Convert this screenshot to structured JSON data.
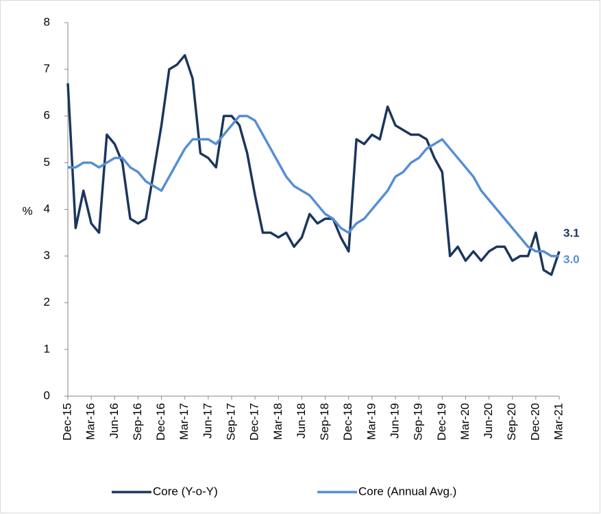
{
  "chart_data": {
    "type": "line",
    "y_label": "%",
    "categories": [
      "Dec-15",
      null,
      null,
      "Mar-16",
      null,
      null,
      "Jun-16",
      null,
      null,
      "Sep-16",
      null,
      null,
      "Dec-16",
      null,
      null,
      "Mar-17",
      null,
      null,
      "Jun-17",
      null,
      null,
      "Sep-17",
      null,
      null,
      "Dec-17",
      null,
      null,
      "Mar-18",
      null,
      null,
      "Jun-18",
      null,
      null,
      "Sep-18",
      null,
      null,
      "Dec-18",
      null,
      null,
      "Mar-19",
      null,
      null,
      "Jun-19",
      null,
      null,
      "Sep-19",
      null,
      null,
      "Dec-19",
      null,
      null,
      "Mar-20",
      null,
      null,
      "Jun-20",
      null,
      null,
      "Sep-20",
      null,
      null,
      "Dec-20",
      null,
      null,
      "Mar-21"
    ],
    "series": [
      {
        "name": "Core (Y-o-Y)",
        "color": "#1b365d",
        "values": [
          6.7,
          3.6,
          4.4,
          3.7,
          3.5,
          5.6,
          5.4,
          5.0,
          3.8,
          3.7,
          3.8,
          4.8,
          5.8,
          7.0,
          7.1,
          7.3,
          6.8,
          5.2,
          5.1,
          4.9,
          6.0,
          6.0,
          5.8,
          5.2,
          4.3,
          3.5,
          3.5,
          3.4,
          3.5,
          3.2,
          3.4,
          3.9,
          3.7,
          3.8,
          3.8,
          3.4,
          3.1,
          5.5,
          5.4,
          5.6,
          5.5,
          6.2,
          5.8,
          5.7,
          5.6,
          5.6,
          5.5,
          5.1,
          4.8,
          3.0,
          3.2,
          2.9,
          3.1,
          2.9,
          3.1,
          3.2,
          3.2,
          2.9,
          3.0,
          3.0,
          3.5,
          2.7,
          2.6,
          3.1
        ],
        "value_labels": [
          null,
          null,
          null,
          null,
          null,
          null,
          null,
          null,
          null,
          null,
          null,
          null,
          null,
          null,
          null,
          null,
          null,
          null,
          null,
          null,
          null,
          null,
          null,
          null,
          null,
          null,
          null,
          null,
          null,
          null,
          null,
          null,
          null,
          null,
          null,
          null,
          null,
          null,
          null,
          null,
          null,
          null,
          null,
          null,
          null,
          null,
          null,
          null,
          null,
          null,
          null,
          null,
          null,
          null,
          null,
          null,
          null,
          null,
          null,
          null,
          null,
          null,
          null,
          "3.1"
        ]
      },
      {
        "name": "Core (Annual Avg.)",
        "color": "#558ed5",
        "values": [
          4.9,
          4.9,
          5.0,
          5.0,
          4.9,
          5.0,
          5.1,
          5.1,
          4.9,
          4.8,
          4.6,
          4.5,
          4.4,
          4.7,
          5.0,
          5.3,
          5.5,
          5.5,
          5.5,
          5.4,
          5.6,
          5.8,
          6.0,
          6.0,
          5.9,
          5.6,
          5.3,
          5.0,
          4.7,
          4.5,
          4.4,
          4.3,
          4.1,
          3.9,
          3.8,
          3.6,
          3.5,
          3.7,
          3.8,
          4.0,
          4.2,
          4.4,
          4.7,
          4.8,
          5.0,
          5.1,
          5.3,
          5.4,
          5.5,
          5.3,
          5.1,
          4.9,
          4.7,
          4.4,
          4.2,
          4.0,
          3.8,
          3.6,
          3.4,
          3.2,
          3.1,
          3.1,
          3.0,
          3.0
        ],
        "value_labels": [
          null,
          null,
          null,
          null,
          null,
          null,
          null,
          null,
          null,
          null,
          null,
          null,
          null,
          null,
          null,
          null,
          null,
          null,
          null,
          null,
          null,
          null,
          null,
          null,
          null,
          null,
          null,
          null,
          null,
          null,
          null,
          null,
          null,
          null,
          null,
          null,
          null,
          null,
          null,
          null,
          null,
          null,
          null,
          null,
          null,
          null,
          null,
          null,
          null,
          null,
          null,
          null,
          null,
          null,
          null,
          null,
          null,
          null,
          null,
          null,
          null,
          null,
          null,
          "3.0"
        ]
      }
    ],
    "ylim": [
      0,
      8
    ],
    "yticks": [
      0,
      1,
      2,
      3,
      4,
      5,
      6,
      7,
      8
    ],
    "grid": false,
    "legend": "bottom"
  }
}
